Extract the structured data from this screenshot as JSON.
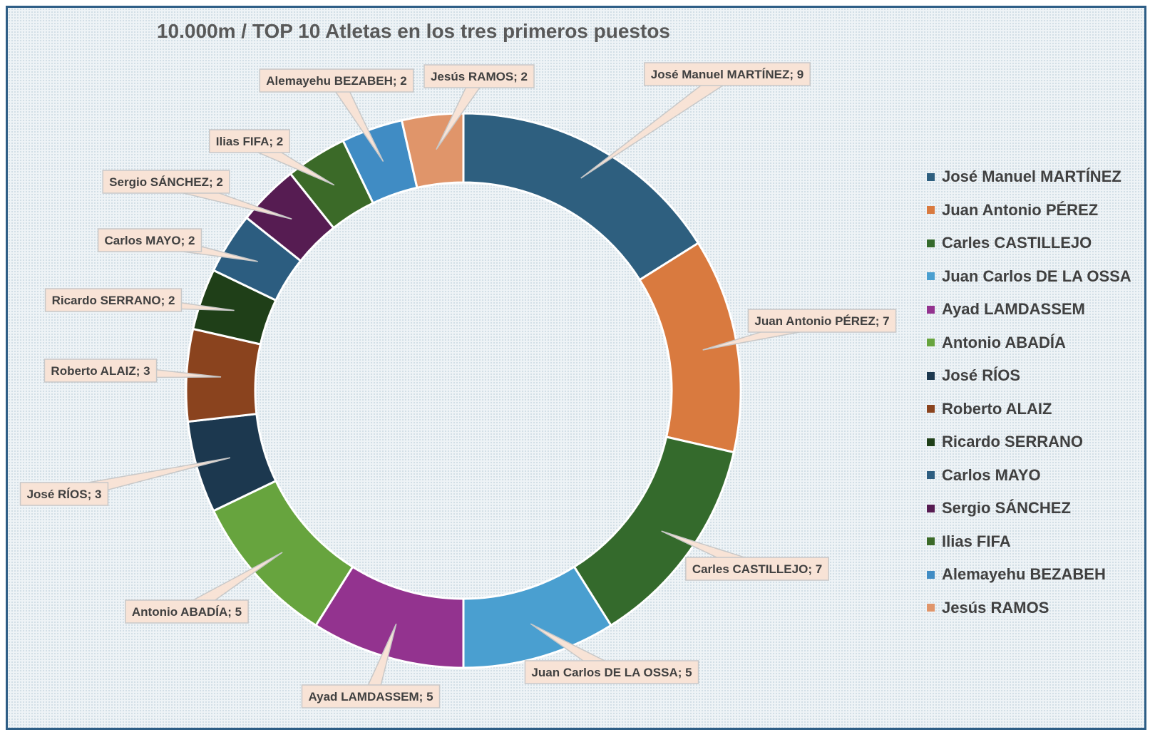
{
  "chart_data": {
    "type": "doughnut",
    "title": "10.000m / TOP 10 Atletas en los tres primeros puestos",
    "legend_position": "right",
    "label_format": "{name}; {value}",
    "series": [
      {
        "name": "José Manuel MARTÍNEZ",
        "value": 9,
        "color": "#2e5f7f"
      },
      {
        "name": "Juan Antonio PÉREZ",
        "value": 7,
        "color": "#d97a3f"
      },
      {
        "name": "Carles CASTILLEJO",
        "value": 7,
        "color": "#346a2c"
      },
      {
        "name": "Juan Carlos DE LA OSSA",
        "value": 5,
        "color": "#4a9fd0"
      },
      {
        "name": "Ayad LAMDASSEM",
        "value": 5,
        "color": "#93338f"
      },
      {
        "name": "Antonio ABADÍA",
        "value": 5,
        "color": "#67a43e"
      },
      {
        "name": "José RÍOS",
        "value": 3,
        "color": "#1c384f"
      },
      {
        "name": "Roberto ALAIZ",
        "value": 3,
        "color": "#8a431e"
      },
      {
        "name": "Ricardo SERRANO",
        "value": 2,
        "color": "#1f3f18"
      },
      {
        "name": "Carlos MAYO",
        "value": 2,
        "color": "#2c5d80"
      },
      {
        "name": "Sergio SÁNCHEZ",
        "value": 2,
        "color": "#561c52"
      },
      {
        "name": "Ilias FIFA",
        "value": 2,
        "color": "#3b6a28"
      },
      {
        "name": "Alemayehu BEZABEH",
        "value": 2,
        "color": "#408cc4"
      },
      {
        "name": "Jesús RAMOS",
        "value": 2,
        "color": "#e0956a"
      }
    ]
  }
}
